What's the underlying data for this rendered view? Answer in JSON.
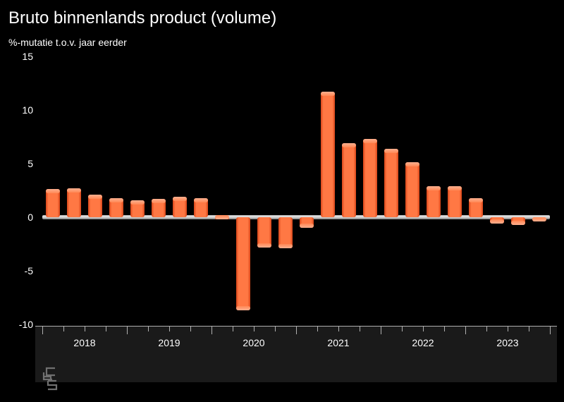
{
  "chart": {
    "type": "bar",
    "title": "Bruto binnenlands product (volume)",
    "subtitle": "%-mutatie t.o.v. jaar eerder",
    "background_color": "#000000",
    "text_color": "#ffffff",
    "title_fontsize": 24,
    "subtitle_fontsize": 14,
    "axis_fontsize": 14,
    "y_axis": {
      "min": -10,
      "max": 15,
      "ticks": [
        -10,
        -5,
        0,
        5,
        10,
        15
      ],
      "tick_labels": [
        "-10",
        "-5",
        "0",
        "5",
        "10",
        "15"
      ]
    },
    "x_axis": {
      "year_labels": [
        "2018",
        "2019",
        "2020",
        "2021",
        "2022",
        "2023"
      ],
      "band_color": "#1a1a1a",
      "tick_color": "#b0b0b0"
    },
    "zero_line_color": "#c0c0c0",
    "bar_color": "#ff6a3c",
    "bar_highlight": "#ffb090",
    "bar_shadow": "#d94518",
    "bar_width": 0.65,
    "data": [
      {
        "period": "2018Q1",
        "value": 2.6
      },
      {
        "period": "2018Q2",
        "value": 2.7
      },
      {
        "period": "2018Q3",
        "value": 2.1
      },
      {
        "period": "2018Q4",
        "value": 1.8
      },
      {
        "period": "2019Q1",
        "value": 1.6
      },
      {
        "period": "2019Q2",
        "value": 1.7
      },
      {
        "period": "2019Q3",
        "value": 1.9
      },
      {
        "period": "2019Q4",
        "value": 1.8
      },
      {
        "period": "2020Q1",
        "value": -0.2
      },
      {
        "period": "2020Q2",
        "value": -8.7
      },
      {
        "period": "2020Q3",
        "value": -2.8
      },
      {
        "period": "2020Q4",
        "value": -2.9
      },
      {
        "period": "2021Q1",
        "value": -1.0
      },
      {
        "period": "2021Q2",
        "value": 11.7
      },
      {
        "period": "2021Q3",
        "value": 6.9
      },
      {
        "period": "2021Q4",
        "value": 7.3
      },
      {
        "period": "2022Q1",
        "value": 6.4
      },
      {
        "period": "2022Q2",
        "value": 5.1
      },
      {
        "period": "2022Q3",
        "value": 2.9
      },
      {
        "period": "2022Q4",
        "value": 2.9
      },
      {
        "period": "2023Q1",
        "value": 1.8
      },
      {
        "period": "2023Q2",
        "value": -0.6
      },
      {
        "period": "2023Q3",
        "value": -0.7
      },
      {
        "period": "2023Q4",
        "value": -0.4
      }
    ],
    "logo_color": "#707070"
  }
}
